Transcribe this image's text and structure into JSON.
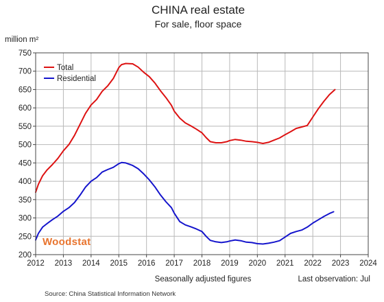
{
  "chart_data": {
    "type": "line",
    "title": "CHINA  real estate",
    "subtitle": "For sale, floor space",
    "ylabel": "million m²",
    "xlabel": "",
    "xlim": [
      2012,
      2024
    ],
    "ylim": [
      200,
      750
    ],
    "xticks": [
      2012,
      2013,
      2014,
      2015,
      2016,
      2017,
      2018,
      2019,
      2020,
      2021,
      2022,
      2023,
      2024
    ],
    "yticks": [
      200,
      250,
      300,
      350,
      400,
      450,
      500,
      550,
      600,
      650,
      700,
      750
    ],
    "grid": true,
    "legend_position": "top-left",
    "series": [
      {
        "name": "Total",
        "color": "#dd1111",
        "points": [
          [
            2012.0,
            370
          ],
          [
            2012.1,
            392
          ],
          [
            2012.25,
            415
          ],
          [
            2012.4,
            430
          ],
          [
            2012.6,
            445
          ],
          [
            2012.8,
            462
          ],
          [
            2013.0,
            483
          ],
          [
            2013.2,
            500
          ],
          [
            2013.4,
            525
          ],
          [
            2013.6,
            555
          ],
          [
            2013.8,
            585
          ],
          [
            2014.0,
            608
          ],
          [
            2014.2,
            623
          ],
          [
            2014.4,
            645
          ],
          [
            2014.6,
            660
          ],
          [
            2014.8,
            680
          ],
          [
            2015.0,
            710
          ],
          [
            2015.1,
            718
          ],
          [
            2015.25,
            721
          ],
          [
            2015.5,
            720
          ],
          [
            2015.7,
            711
          ],
          [
            2015.9,
            697
          ],
          [
            2016.1,
            685
          ],
          [
            2016.3,
            668
          ],
          [
            2016.5,
            647
          ],
          [
            2016.7,
            628
          ],
          [
            2016.9,
            607
          ],
          [
            2017.0,
            591
          ],
          [
            2017.2,
            572
          ],
          [
            2017.4,
            559
          ],
          [
            2017.6,
            551
          ],
          [
            2017.8,
            542
          ],
          [
            2018.0,
            532
          ],
          [
            2018.15,
            519
          ],
          [
            2018.3,
            508
          ],
          [
            2018.5,
            505
          ],
          [
            2018.7,
            505
          ],
          [
            2018.9,
            508
          ],
          [
            2019.0,
            511
          ],
          [
            2019.2,
            514
          ],
          [
            2019.4,
            512
          ],
          [
            2019.6,
            509
          ],
          [
            2019.8,
            508
          ],
          [
            2020.0,
            506
          ],
          [
            2020.2,
            503
          ],
          [
            2020.4,
            506
          ],
          [
            2020.6,
            512
          ],
          [
            2020.8,
            518
          ],
          [
            2021.0,
            527
          ],
          [
            2021.2,
            535
          ],
          [
            2021.4,
            544
          ],
          [
            2021.6,
            548
          ],
          [
            2021.8,
            552
          ],
          [
            2022.0,
            575
          ],
          [
            2022.2,
            598
          ],
          [
            2022.4,
            618
          ],
          [
            2022.6,
            636
          ],
          [
            2022.8,
            650
          ]
        ]
      },
      {
        "name": "Residential",
        "color": "#1414cc",
        "points": [
          [
            2012.0,
            240
          ],
          [
            2012.1,
            258
          ],
          [
            2012.25,
            275
          ],
          [
            2012.4,
            284
          ],
          [
            2012.6,
            295
          ],
          [
            2012.8,
            305
          ],
          [
            2013.0,
            318
          ],
          [
            2013.2,
            328
          ],
          [
            2013.4,
            342
          ],
          [
            2013.6,
            362
          ],
          [
            2013.8,
            384
          ],
          [
            2014.0,
            400
          ],
          [
            2014.2,
            410
          ],
          [
            2014.4,
            425
          ],
          [
            2014.6,
            432
          ],
          [
            2014.8,
            438
          ],
          [
            2015.0,
            448
          ],
          [
            2015.1,
            451
          ],
          [
            2015.25,
            450
          ],
          [
            2015.5,
            443
          ],
          [
            2015.7,
            434
          ],
          [
            2015.9,
            420
          ],
          [
            2016.1,
            404
          ],
          [
            2016.3,
            385
          ],
          [
            2016.5,
            363
          ],
          [
            2016.7,
            344
          ],
          [
            2016.9,
            328
          ],
          [
            2017.0,
            313
          ],
          [
            2017.2,
            290
          ],
          [
            2017.4,
            281
          ],
          [
            2017.6,
            276
          ],
          [
            2017.8,
            270
          ],
          [
            2018.0,
            263
          ],
          [
            2018.15,
            250
          ],
          [
            2018.3,
            239
          ],
          [
            2018.5,
            235
          ],
          [
            2018.7,
            233
          ],
          [
            2018.9,
            235
          ],
          [
            2019.0,
            237
          ],
          [
            2019.2,
            240
          ],
          [
            2019.4,
            238
          ],
          [
            2019.6,
            234
          ],
          [
            2019.8,
            233
          ],
          [
            2020.0,
            230
          ],
          [
            2020.2,
            229
          ],
          [
            2020.4,
            231
          ],
          [
            2020.6,
            234
          ],
          [
            2020.8,
            238
          ],
          [
            2021.0,
            248
          ],
          [
            2021.2,
            258
          ],
          [
            2021.4,
            263
          ],
          [
            2021.6,
            267
          ],
          [
            2021.8,
            275
          ],
          [
            2022.0,
            286
          ],
          [
            2022.2,
            295
          ],
          [
            2022.4,
            304
          ],
          [
            2022.6,
            312
          ],
          [
            2022.75,
            317
          ]
        ]
      }
    ],
    "footnote_center": "Seasonally adjusted figures",
    "footnote_right": "Last observation: Jul",
    "source": "Source: China Statistical Information Network",
    "watermark": "Woodstat"
  }
}
